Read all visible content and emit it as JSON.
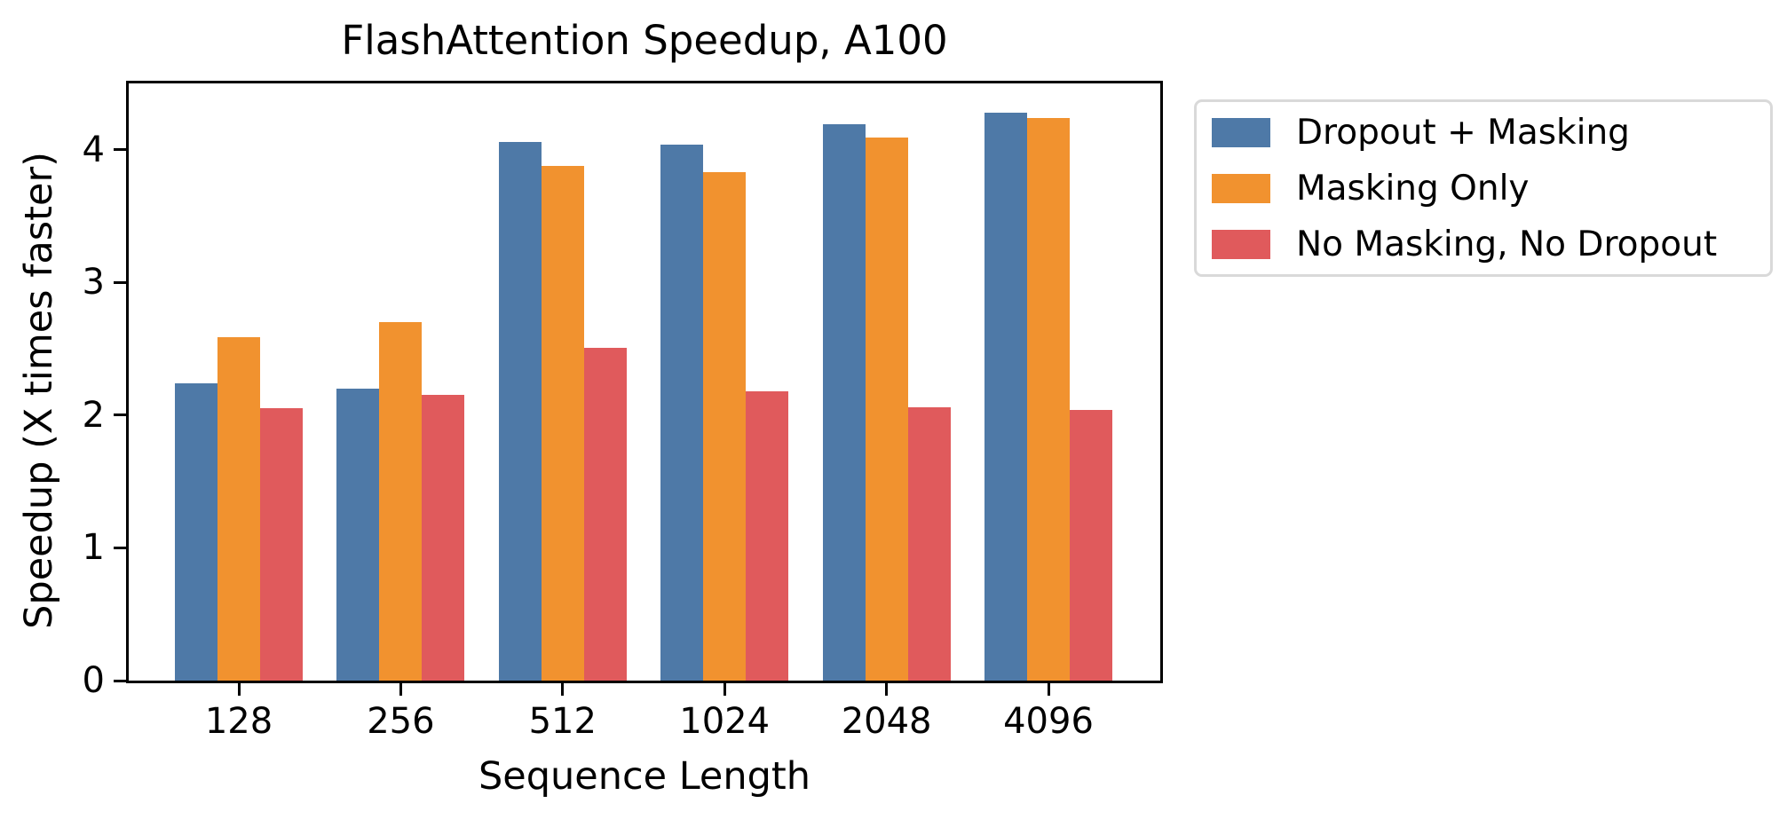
{
  "chart_data": {
    "type": "bar",
    "title": "FlashAttention Speedup, A100",
    "xlabel": "Sequence Length",
    "ylabel": "Speedup (X times faster)",
    "categories": [
      "128",
      "256",
      "512",
      "1024",
      "2048",
      "4096"
    ],
    "series": [
      {
        "name": "Dropout + Masking",
        "color": "#4E79A7",
        "values": [
          2.24,
          2.2,
          4.06,
          4.04,
          4.19,
          4.28
        ]
      },
      {
        "name": "Masking Only",
        "color": "#F1922F",
        "values": [
          2.59,
          2.7,
          3.88,
          3.83,
          4.09,
          4.24
        ]
      },
      {
        "name": "No Masking, No Dropout",
        "color": "#E05A5C",
        "values": [
          2.05,
          2.15,
          2.51,
          2.18,
          2.06,
          2.04
        ]
      }
    ],
    "ylim": [
      0,
      4.5
    ],
    "yticks": [
      "0",
      "1",
      "2",
      "3",
      "4"
    ],
    "grid": false,
    "frame": true,
    "legend_position": "outside-right",
    "axis_color": "#000000",
    "background_color": "#ffffff"
  }
}
